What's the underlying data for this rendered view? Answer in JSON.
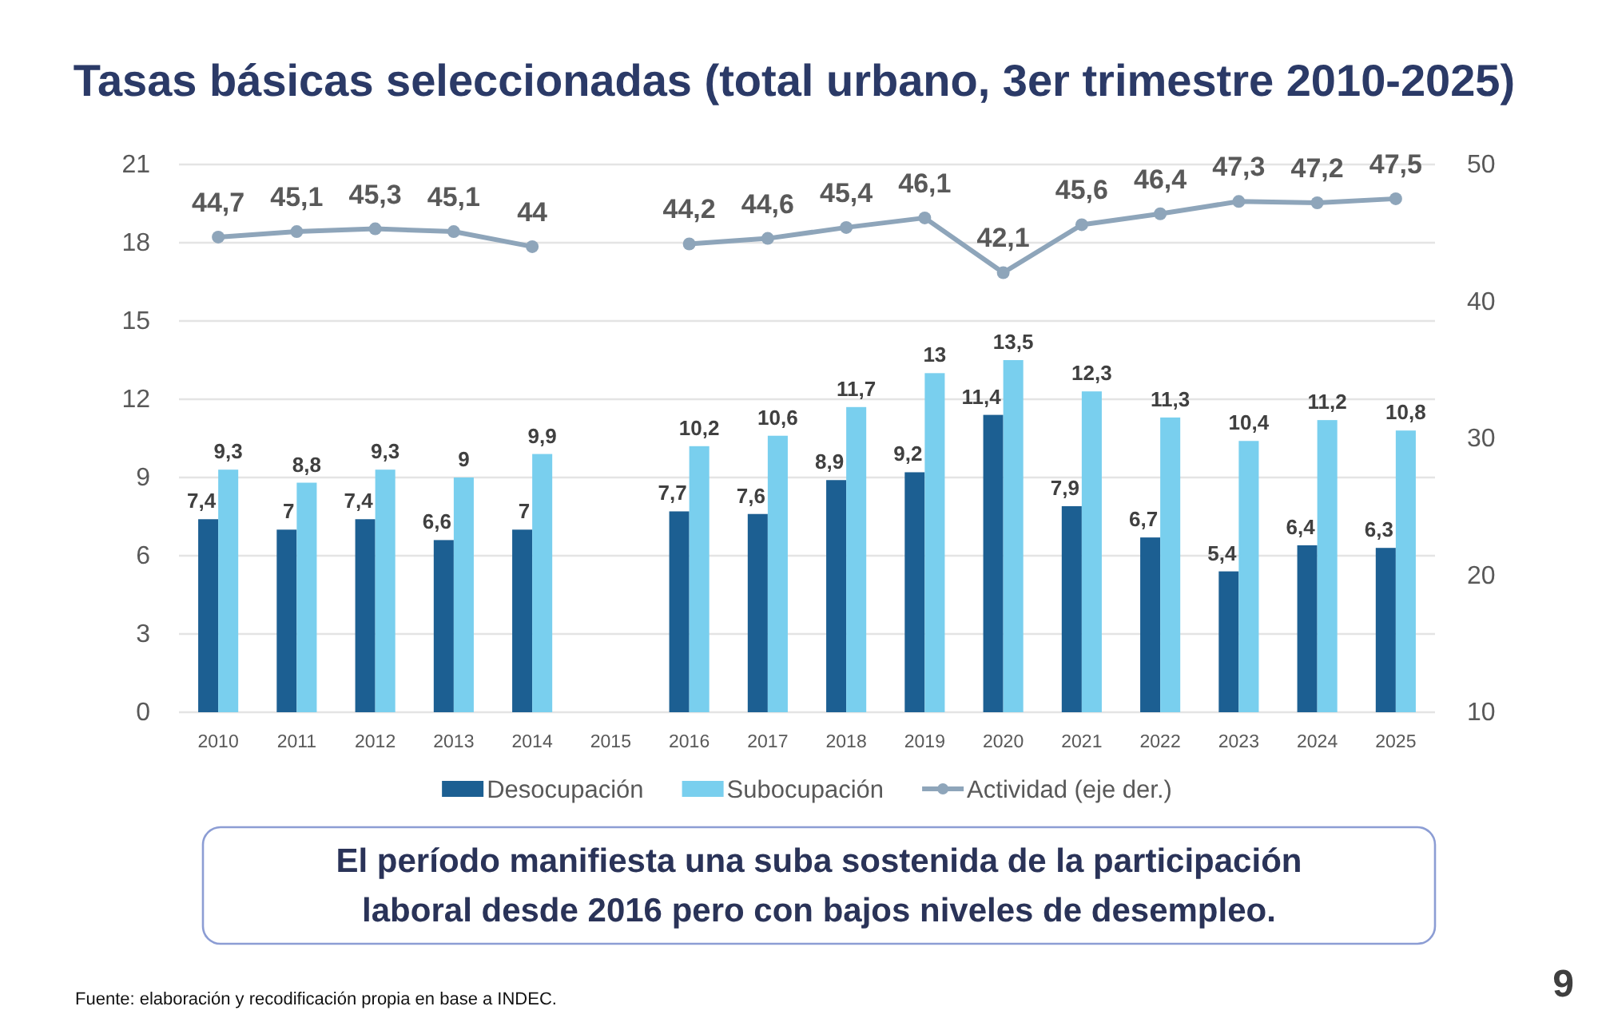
{
  "chart_data": {
    "type": "bar",
    "title": "Tasas básicas seleccionadas (total urbano, 3er trimestre 2010-2025)",
    "categories": [
      "2010",
      "2011",
      "2012",
      "2013",
      "2014",
      "2015",
      "2016",
      "2017",
      "2018",
      "2019",
      "2020",
      "2021",
      "2022",
      "2023",
      "2024",
      "2025"
    ],
    "series": [
      {
        "name": "Desocupación",
        "color": "#1c5f92",
        "values": [
          7.4,
          7,
          7.4,
          6.6,
          7,
          null,
          7.7,
          7.6,
          8.9,
          9.2,
          11.4,
          7.9,
          6.7,
          5.4,
          6.4,
          6.3
        ],
        "value_labels": [
          "7,4",
          "7",
          "7,4",
          "6,6",
          "7",
          null,
          "7,7",
          "7,6",
          "8,9",
          "9,2",
          "11,4",
          "7,9",
          "6,7",
          "5,4",
          "6,4",
          "6,3"
        ]
      },
      {
        "name": "Subocupación",
        "color": "#79cfee",
        "values": [
          9.3,
          8.8,
          9.3,
          9,
          9.9,
          null,
          10.2,
          10.6,
          11.7,
          13,
          13.5,
          12.3,
          11.3,
          10.4,
          11.2,
          10.8
        ],
        "value_labels": [
          "9,3",
          "8,8",
          "9,3",
          "9",
          "9,9",
          null,
          "10,2",
          "10,6",
          "11,7",
          "13",
          "13,5",
          "12,3",
          "11,3",
          "10,4",
          "11,2",
          "10,8"
        ]
      },
      {
        "name": "Actividad (eje der.)",
        "type": "line",
        "axis": "y2",
        "color": "#8ea5ba",
        "values": [
          44.7,
          45.1,
          45.3,
          45.1,
          44,
          null,
          44.2,
          44.6,
          45.4,
          46.1,
          42.1,
          45.6,
          46.4,
          47.3,
          47.2,
          47.5
        ],
        "value_labels": [
          "44,7",
          "45,1",
          "45,3",
          "45,1",
          "44",
          null,
          "44,2",
          "44,6",
          "45,4",
          "46,1",
          "42,1",
          "45,6",
          "46,4",
          "47,3",
          "47,2",
          "47,5"
        ]
      }
    ],
    "ylim": [
      0,
      21
    ],
    "yticks": [
      0,
      3,
      6,
      9,
      12,
      15,
      18,
      21
    ],
    "y2lim": [
      10,
      50
    ],
    "y2ticks": [
      10,
      20,
      30,
      40,
      50
    ],
    "grid": "y",
    "legend": "bottom",
    "marker": "circle",
    "annotations": [
      "El período manifiesta una suba sostenida de la participación laboral desde 2016 pero con bajos niveles de desempleo.",
      "Fuente: elaboración y recodificación propia en base a INDEC.",
      "9"
    ]
  }
}
